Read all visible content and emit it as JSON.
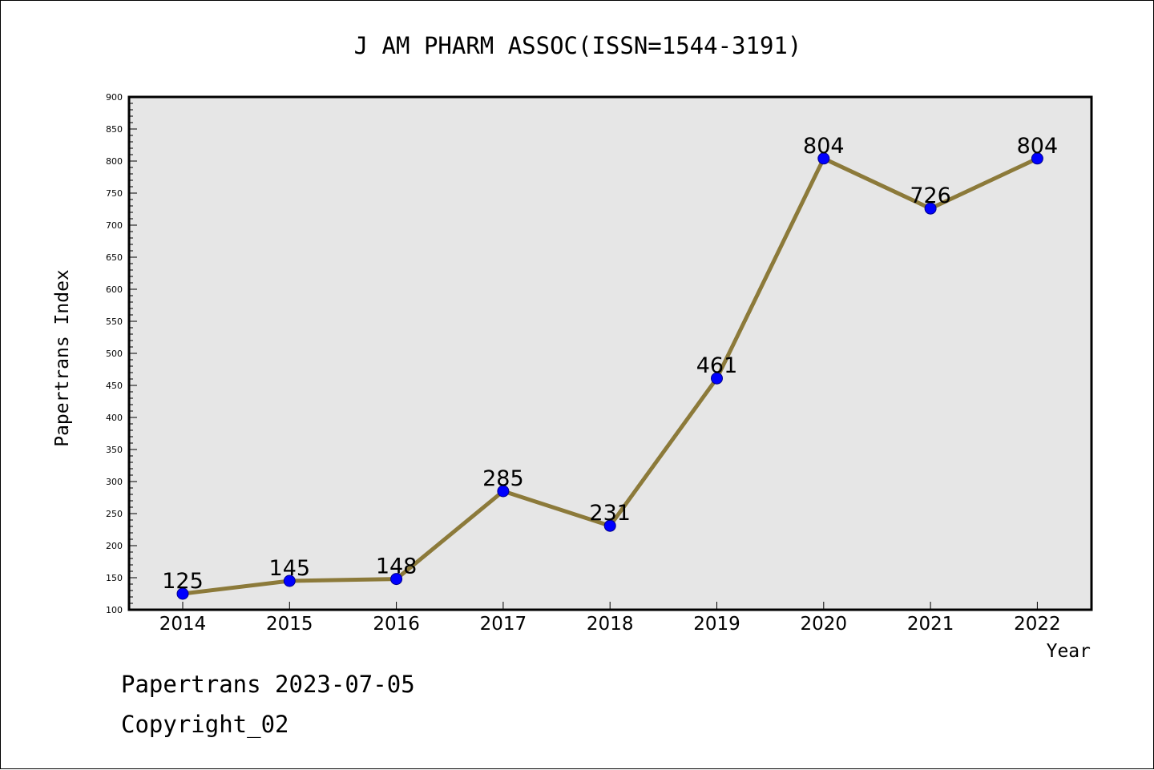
{
  "chart_data": {
    "type": "line",
    "title": "J AM PHARM ASSOC(ISSN=1544-3191)",
    "xlabel": "Year",
    "ylabel": "Papertrans Index",
    "categories": [
      "2014",
      "2015",
      "2016",
      "2017",
      "2018",
      "2019",
      "2020",
      "2021",
      "2022"
    ],
    "series": [
      {
        "values": [
          125,
          145,
          148,
          285,
          231,
          461,
          804,
          726,
          804
        ]
      }
    ],
    "ylim": [
      100,
      900
    ],
    "ytick_step": 50,
    "grid": false,
    "data_labels": true,
    "colors": {
      "line": "#8c7a3a",
      "marker": "#0000ff",
      "plot_bg": "#e6e6e6"
    }
  },
  "footer": {
    "date_text": "Papertrans 2023-07-05",
    "copyright_text": "Copyright_02"
  }
}
